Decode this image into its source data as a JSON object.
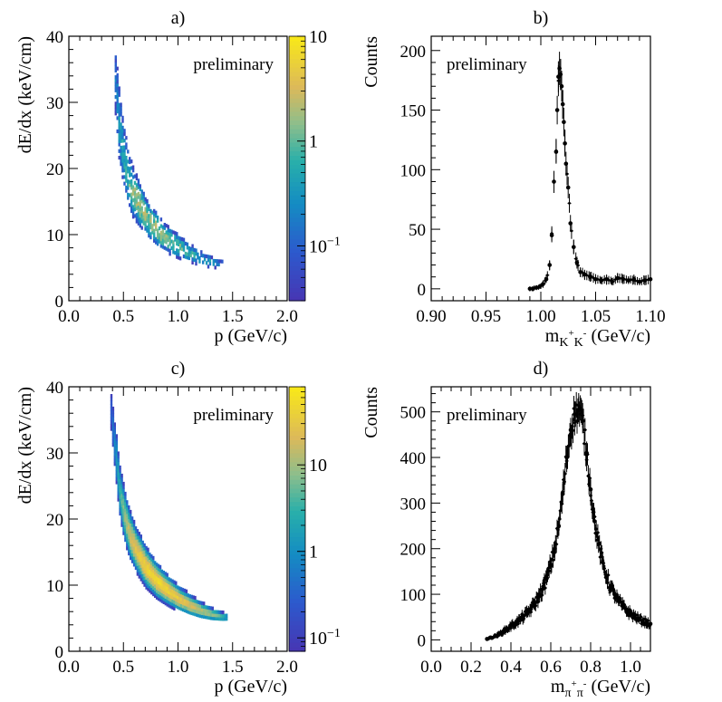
{
  "chart_data": [
    {
      "panel_label": "a)",
      "type": "heatmap",
      "xlabel": "p (GeV/c)",
      "ylabel": "dE/dx (keV/cm)",
      "annotation": "preliminary",
      "xlim": [
        0.0,
        2.0
      ],
      "ylim": [
        0,
        40
      ],
      "xticks": [
        "0.0",
        "0.5",
        "1.0",
        "1.5",
        "2.0"
      ],
      "yticks": [
        "0",
        "10",
        "20",
        "30",
        "40"
      ],
      "colorbar": {
        "scale": "log",
        "range": [
          0.03,
          10
        ],
        "ticks": [
          "10",
          "1",
          "10−1"
        ]
      },
      "band": {
        "p": [
          0.42,
          0.45,
          0.5,
          0.55,
          0.6,
          0.7,
          0.8,
          0.9,
          1.0,
          1.1,
          1.2,
          1.3,
          1.4
        ],
        "dEdx_center": [
          33,
          27,
          21,
          17.5,
          15.5,
          12.5,
          10.5,
          9,
          8,
          7,
          6.2,
          5.6,
          5.2
        ],
        "half_width": [
          6,
          6,
          5,
          3.8,
          3.2,
          2.5,
          2.2,
          1.8,
          1.6,
          1.3,
          1.1,
          0.9,
          0.7
        ],
        "peak_log10_counts": [
          -0.8,
          -0.5,
          -0.3,
          -0.1,
          0.2,
          0.2,
          0.2,
          0.1,
          0.0,
          -0.2,
          -0.4,
          -0.5,
          -0.6
        ]
      }
    },
    {
      "panel_label": "b)",
      "type": "scatter",
      "xlabel_main": "m",
      "xlabel_sub": "K",
      "xlabel_sup1": "+",
      "xlabel_sub2": "K",
      "xlabel_sup2": "-",
      "xlabel_unit": " (GeV/c)",
      "ylabel": "Counts",
      "annotation": "preliminary",
      "xlim": [
        0.9,
        1.1
      ],
      "ylim": [
        -10,
        212
      ],
      "xticks": [
        "0.90",
        "0.95",
        "1.00",
        "1.05",
        "1.10"
      ],
      "yticks": [
        "0",
        "50",
        "100",
        "150",
        "200"
      ],
      "series": [
        {
          "x": [
            0.99,
            0.993,
            0.996,
            0.999,
            1.002,
            1.005,
            1.008,
            1.01,
            1.012,
            1.014,
            1.015,
            1.016,
            1.017,
            1.018,
            1.019,
            1.02,
            1.021,
            1.022,
            1.023,
            1.025,
            1.027,
            1.03,
            1.033,
            1.036,
            1.04,
            1.045,
            1.05,
            1.055,
            1.06,
            1.065,
            1.07,
            1.075,
            1.08,
            1.085,
            1.09,
            1.095,
            1.1
          ],
          "y": [
            0,
            0,
            1,
            2,
            4,
            8,
            20,
            45,
            90,
            115,
            150,
            178,
            185,
            180,
            170,
            155,
            140,
            122,
            105,
            85,
            55,
            35,
            22,
            14,
            12,
            10,
            8,
            7,
            8,
            6,
            9,
            8,
            7,
            8,
            6,
            7,
            8
          ],
          "err": [
            2,
            2,
            2,
            2,
            3,
            3,
            4,
            6,
            9,
            10,
            12,
            13,
            14,
            13,
            13,
            12,
            12,
            11,
            10,
            9,
            7,
            6,
            5,
            4,
            4,
            4,
            4,
            3,
            4,
            3,
            4,
            4,
            3,
            4,
            3,
            4,
            4
          ]
        }
      ]
    },
    {
      "panel_label": "c)",
      "type": "heatmap",
      "xlabel": "p (GeV/c)",
      "ylabel": "dE/dx (keV/cm)",
      "annotation": "preliminary",
      "xlim": [
        0.0,
        2.0
      ],
      "ylim": [
        0,
        40
      ],
      "xticks": [
        "0.0",
        "0.5",
        "1.0",
        "1.5",
        "2.0"
      ],
      "yticks": [
        "0",
        "10",
        "20",
        "30",
        "40"
      ],
      "colorbar": {
        "scale": "log",
        "range": [
          0.07,
          80
        ],
        "ticks": [
          "10",
          "1",
          "10−1"
        ]
      },
      "band": {
        "p": [
          0.38,
          0.42,
          0.46,
          0.5,
          0.55,
          0.6,
          0.7,
          0.8,
          0.9,
          1.0,
          1.1,
          1.2,
          1.3,
          1.4,
          1.45
        ],
        "dEdx_center": [
          36,
          30,
          24,
          20.5,
          17.5,
          15.5,
          12.5,
          10.5,
          9,
          7.8,
          6.8,
          6,
          5.4,
          5,
          4.9
        ],
        "half_width": [
          4,
          4,
          3.5,
          3.2,
          2.8,
          2.5,
          2.2,
          1.9,
          1.6,
          1.4,
          1.2,
          1.0,
          0.8,
          0.6,
          0.5
        ],
        "peak_log10_counts": [
          -0.6,
          0.0,
          0.5,
          0.9,
          1.2,
          1.4,
          1.6,
          1.65,
          1.6,
          1.45,
          1.3,
          1.15,
          0.9,
          0.6,
          0.3
        ]
      }
    },
    {
      "panel_label": "d)",
      "type": "scatter",
      "xlabel_main": "m",
      "xlabel_sub": "π",
      "xlabel_sup1": "+",
      "xlabel_sub2": "π",
      "xlabel_sup2": "-",
      "xlabel_unit": " (GeV/c)",
      "ylabel": "Counts",
      "annotation": "preliminary",
      "xlim": [
        0.0,
        1.1
      ],
      "ylim": [
        -25,
        555
      ],
      "xticks": [
        "0.0",
        "0.2",
        "0.4",
        "0.6",
        "0.8",
        "1.0"
      ],
      "yticks": [
        "0",
        "100",
        "200",
        "300",
        "400",
        "500"
      ],
      "series": [
        {
          "x": [
            0.28,
            0.3,
            0.32,
            0.34,
            0.36,
            0.38,
            0.4,
            0.42,
            0.44,
            0.46,
            0.48,
            0.5,
            0.52,
            0.54,
            0.56,
            0.58,
            0.6,
            0.62,
            0.64,
            0.66,
            0.68,
            0.7,
            0.72,
            0.74,
            0.76,
            0.78,
            0.8,
            0.82,
            0.84,
            0.86,
            0.88,
            0.9,
            0.92,
            0.94,
            0.96,
            0.98,
            1.0,
            1.02,
            1.04,
            1.06,
            1.08,
            1.1
          ],
          "y": [
            2,
            5,
            8,
            12,
            18,
            24,
            30,
            36,
            42,
            50,
            58,
            68,
            80,
            95,
            112,
            135,
            165,
            200,
            250,
            320,
            400,
            460,
            495,
            505,
            480,
            410,
            330,
            260,
            210,
            170,
            140,
            115,
            100,
            85,
            75,
            65,
            58,
            52,
            46,
            42,
            38,
            35
          ],
          "err": [
            3,
            3,
            4,
            5,
            6,
            7,
            8,
            8,
            9,
            10,
            10,
            11,
            12,
            13,
            14,
            15,
            16,
            18,
            20,
            22,
            25,
            27,
            28,
            28,
            27,
            25,
            22,
            20,
            18,
            16,
            14,
            13,
            12,
            11,
            10,
            10,
            9,
            9,
            8,
            8,
            8,
            7
          ]
        }
      ]
    }
  ]
}
